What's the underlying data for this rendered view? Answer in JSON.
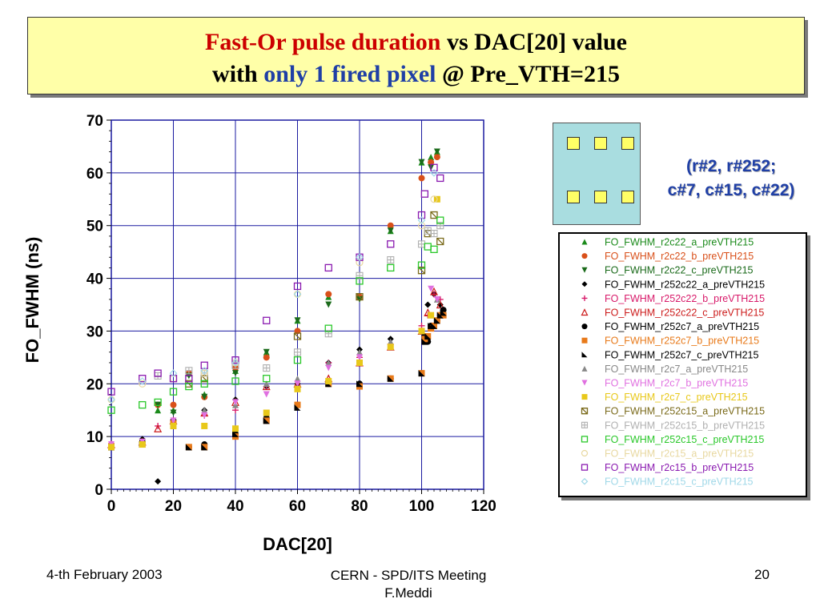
{
  "title": {
    "line1_red": "Fast-Or pulse duration",
    "line1_black": " vs DAC[20] value",
    "line2_black1": "with ",
    "line2_blue": "only 1 fired pixel",
    "line2_black2": " @ Pre_VTH=215"
  },
  "pixel_note": {
    "line1": "(r#2, r#252;",
    "line2": "c#7, c#15, c#22)"
  },
  "footer": {
    "date": "4-th February 2003",
    "meeting": "CERN - SPD/ITS Meeting",
    "author": "F.Meddi",
    "page": "20"
  },
  "chart_data": {
    "type": "scatter",
    "xlabel": "DAC[20]",
    "ylabel": "FO_FWHM   (ns)",
    "xlim": [
      0,
      120
    ],
    "ylim": [
      0,
      70
    ],
    "xticks": [
      0,
      20,
      40,
      60,
      80,
      100,
      120
    ],
    "yticks": [
      0,
      10,
      20,
      30,
      40,
      50,
      60,
      70
    ],
    "grid": true,
    "legend_position": "right",
    "series": [
      {
        "name": "FO_FWHM_r2c22_a_preVTH215",
        "color": "#1a8a1a",
        "marker": "triangle",
        "x": [
          0,
          10,
          15,
          20,
          25,
          30,
          40,
          50,
          60,
          70,
          80,
          90,
          100,
          103,
          105
        ],
        "y": [
          8.5,
          9,
          15,
          15,
          22,
          18,
          22.5,
          26,
          32,
          36.5,
          36.5,
          49,
          62,
          63,
          64
        ]
      },
      {
        "name": "FO_FWHM_r2c22_b_preVTH215",
        "color": "#d9501a",
        "marker": "circle",
        "x": [
          0,
          10,
          15,
          20,
          25,
          30,
          40,
          50,
          60,
          70,
          80,
          90,
          100,
          103,
          105
        ],
        "y": [
          8.5,
          9,
          16,
          16,
          22,
          17.5,
          23,
          25,
          30,
          37,
          36.5,
          50,
          59,
          62,
          63
        ]
      },
      {
        "name": "FO_FWHM_r2c22_c_preVTH215",
        "color": "#1a6a1a",
        "marker": "triangle-down",
        "x": [
          0,
          10,
          15,
          20,
          25,
          30,
          40,
          50,
          60,
          70,
          80,
          90,
          100,
          103,
          105
        ],
        "y": [
          8,
          9,
          16,
          14.5,
          21.5,
          17.5,
          22,
          26,
          32,
          35,
          36,
          49,
          62,
          61,
          64
        ]
      },
      {
        "name": "FO_FWHM_r252c22_a_preVTH215",
        "color": "#000000",
        "marker": "diamond",
        "x": [
          0,
          10,
          15,
          20,
          30,
          40,
          50,
          60,
          70,
          80,
          90,
          100,
          102,
          104,
          106
        ],
        "y": [
          8,
          9.5,
          1.5,
          13,
          15,
          17,
          19.5,
          20,
          24,
          26.5,
          28.5,
          30,
          35,
          37,
          35
        ]
      },
      {
        "name": "FO_FWHM_r252c22_b_preVTH215",
        "color": "#d81a6a",
        "marker": "plus",
        "x": [
          0,
          10,
          15,
          20,
          30,
          40,
          50,
          60,
          70,
          80,
          90,
          100,
          102,
          104,
          106
        ],
        "y": [
          8.5,
          9,
          12,
          12.5,
          14,
          15,
          19.5,
          19.5,
          24,
          25,
          27.5,
          31,
          33,
          37,
          36
        ]
      },
      {
        "name": "FO_FWHM_r252c22_c_preVTH215",
        "color": "#cc1a1a",
        "marker": "triangle-open",
        "x": [
          0,
          10,
          15,
          20,
          30,
          40,
          50,
          60,
          70,
          80,
          90,
          100,
          102,
          104,
          106
        ],
        "y": [
          8.5,
          9,
          11.5,
          13,
          14.5,
          16.5,
          19.5,
          20,
          21,
          24,
          27,
          30,
          33.5,
          37.5,
          35
        ]
      },
      {
        "name": "FO_FWHM_r252c7_a_preVTH215",
        "color": "#000000",
        "marker": "circle",
        "x": [
          0,
          10,
          20,
          25,
          30,
          40,
          50,
          60,
          70,
          80,
          90,
          100,
          101,
          102,
          103,
          104,
          105,
          106,
          107
        ],
        "y": [
          8,
          9,
          13,
          8,
          8.5,
          10.5,
          13.5,
          16,
          20,
          20,
          21,
          22,
          29,
          28,
          31,
          31,
          32,
          33,
          34
        ]
      },
      {
        "name": "FO_FWHM_r252c7_b_preVTH215",
        "color": "#e87a1a",
        "marker": "square",
        "x": [
          0,
          10,
          20,
          25,
          30,
          40,
          50,
          60,
          70,
          80,
          90,
          100,
          101,
          102,
          103,
          104,
          105,
          106,
          107
        ],
        "y": [
          8,
          8.5,
          12.5,
          8,
          8,
          10,
          13,
          16,
          20,
          19.5,
          21,
          22,
          28.5,
          29,
          30.5,
          31,
          32,
          33,
          33
        ]
      },
      {
        "name": "FO_FWHM_r252c7_c_preVTH215",
        "color": "#000000",
        "marker": "wedge",
        "x": [
          0,
          10,
          20,
          25,
          30,
          40,
          50,
          60,
          70,
          80,
          90,
          100,
          101,
          102,
          103,
          104,
          105,
          106,
          107
        ],
        "y": [
          8,
          8.5,
          12,
          8,
          8,
          10.5,
          13,
          15.5,
          20,
          20,
          21,
          22,
          28,
          29,
          31,
          31,
          32,
          33,
          33.5
        ]
      },
      {
        "name": "FO_FWHM_r2c7_a_preVTH215",
        "color": "#888888",
        "marker": "triangle",
        "x": [
          0,
          10,
          20,
          30,
          40,
          50,
          60,
          70,
          80,
          90,
          100,
          103,
          105
        ],
        "y": [
          8.5,
          9,
          12,
          15,
          16,
          20,
          21,
          24,
          26,
          28,
          30,
          33,
          36
        ]
      },
      {
        "name": "FO_FWHM_r2c7_b_preVTH215",
        "color": "#e070e0",
        "marker": "triangle-down",
        "x": [
          0,
          10,
          20,
          30,
          40,
          50,
          60,
          70,
          80,
          90,
          100,
          103,
          105
        ],
        "y": [
          8.5,
          9,
          13,
          14,
          16.5,
          18,
          20,
          23,
          25,
          27,
          30,
          38,
          36
        ]
      },
      {
        "name": "FO_FWHM_r2c7_c_preVTH215",
        "color": "#e8c81a",
        "marker": "square",
        "x": [
          0,
          10,
          20,
          30,
          40,
          50,
          60,
          70,
          80,
          90,
          100,
          103,
          105
        ],
        "y": [
          8,
          8.5,
          12,
          12,
          11.5,
          14.5,
          19,
          20.5,
          24,
          27,
          30,
          33,
          55
        ]
      },
      {
        "name": "FO_FWHM_r252c15_a_preVTH215",
        "color": "#7a6a1a",
        "marker": "square-x",
        "x": [
          25,
          30,
          60,
          80,
          100,
          102,
          104,
          106
        ],
        "y": [
          20,
          21,
          29,
          36.5,
          41.5,
          48.5,
          52,
          47
        ]
      },
      {
        "name": "FO_FWHM_r252c15_b_preVTH215",
        "color": "#b0b0b0",
        "marker": "square-plus",
        "x": [
          15,
          25,
          30,
          40,
          50,
          60,
          70,
          80,
          90,
          100,
          102,
          104,
          106
        ],
        "y": [
          21.5,
          22.5,
          22,
          23.5,
          23,
          26,
          29.5,
          40.5,
          43.5,
          46.5,
          49,
          48.5,
          50
        ]
      },
      {
        "name": "FO_FWHM_r252c15_c_preVTH215",
        "color": "#2ac82a",
        "marker": "square-open",
        "x": [
          0,
          10,
          15,
          20,
          25,
          30,
          40,
          50,
          60,
          70,
          80,
          90,
          100,
          102,
          104,
          106
        ],
        "y": [
          15,
          16,
          16.5,
          18.5,
          19.5,
          20,
          20.5,
          21,
          24.5,
          30.5,
          39.5,
          42,
          42.5,
          46,
          45.5,
          51
        ]
      },
      {
        "name": "FO_FWHM_r2c15_a_preVTH215",
        "color": "#e8d8a0",
        "marker": "circle-open",
        "x": [
          0,
          10,
          20,
          30,
          40,
          60,
          80,
          100,
          104
        ],
        "y": [
          17,
          20,
          21,
          22,
          24,
          37,
          43,
          50,
          55
        ]
      },
      {
        "name": "FO_FWHM_r2c15_b_preVTH215",
        "color": "#8a1ab0",
        "marker": "square-open",
        "x": [
          0,
          10,
          15,
          20,
          25,
          30,
          40,
          50,
          60,
          70,
          80,
          90,
          100,
          101,
          104,
          106
        ],
        "y": [
          18.5,
          21,
          22,
          21,
          21,
          23.5,
          24.5,
          32,
          38.5,
          42,
          44,
          46.5,
          52,
          56,
          61,
          59
        ]
      },
      {
        "name": "FO_FWHM_r2c15_c_preVTH215",
        "color": "#a0d8e8",
        "marker": "diamond-open",
        "x": [
          0,
          10,
          20,
          30,
          40,
          60,
          80,
          100,
          104
        ],
        "y": [
          17,
          20.5,
          22,
          22.5,
          24,
          37,
          44,
          51,
          60
        ]
      }
    ]
  }
}
